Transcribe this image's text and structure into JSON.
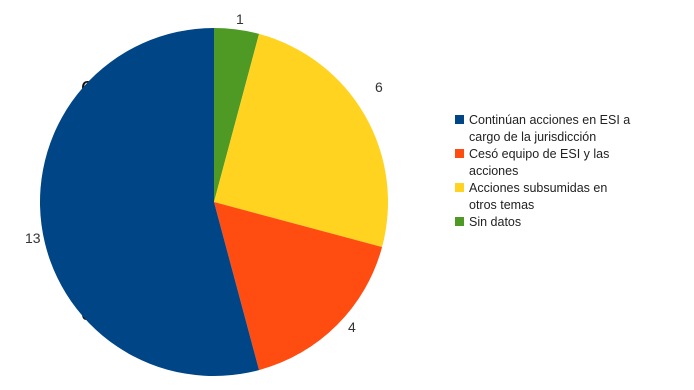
{
  "chart_data": {
    "type": "pie",
    "categories": [
      "Sin datos",
      "Acciones subsumidas en otros temas",
      "Cesó equipo de ESI y las acciones",
      "Continúan acciones en ESI a cargo de la jurisdicción"
    ],
    "values": [
      1,
      6,
      4,
      13
    ],
    "colors": [
      "#4e9a25",
      "#ffd320",
      "#ff4d12",
      "#004586"
    ],
    "legend_position": "right",
    "legend": [
      {
        "lines": [
          "Continúan acciones en ESI a",
          "cargo de la jurisdicción"
        ],
        "color": "#004586"
      },
      {
        "lines": [
          "Cesó equipo de ESI y las",
          "acciones"
        ],
        "color": "#ff4d12"
      },
      {
        "lines": [
          "Acciones subsumidas en",
          "otros temas"
        ],
        "color": "#ffd320"
      },
      {
        "lines": [
          "Sin datos"
        ],
        "color": "#4e9a25"
      }
    ],
    "slice_labels": [
      "1",
      "6",
      "4",
      "13"
    ]
  },
  "background_text_fragments": [
    "e",
    "del"
  ]
}
